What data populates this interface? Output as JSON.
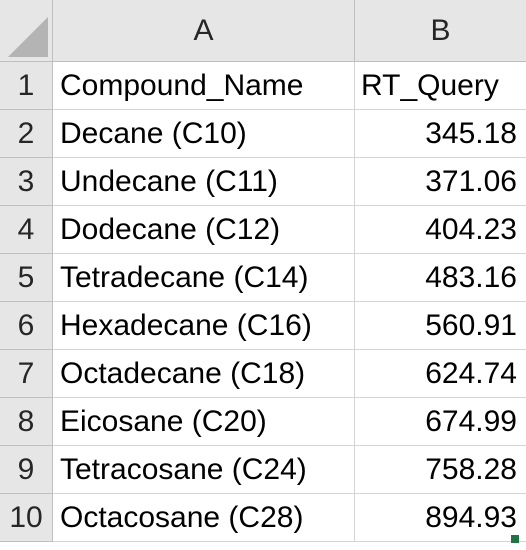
{
  "columns": [
    {
      "letter": "A"
    },
    {
      "letter": "B"
    }
  ],
  "rows": [
    {
      "num": "1",
      "a": "Compound_Name",
      "b": "RT_Query"
    },
    {
      "num": "2",
      "a": "Decane (C10)",
      "b": "345.18"
    },
    {
      "num": "3",
      "a": "Undecane (C11)",
      "b": "371.06"
    },
    {
      "num": "4",
      "a": "Dodecane (C12)",
      "b": "404.23"
    },
    {
      "num": "5",
      "a": "Tetradecane (C14)",
      "b": "483.16"
    },
    {
      "num": "6",
      "a": "Hexadecane (C16)",
      "b": "560.91"
    },
    {
      "num": "7",
      "a": "Octadecane (C18)",
      "b": "624.74"
    },
    {
      "num": "8",
      "a": "Eicosane (C20)",
      "b": "674.99"
    },
    {
      "num": "9",
      "a": "Tetracosane (C24)",
      "b": "758.28"
    },
    {
      "num": "10",
      "a": "Octacosane (C28)",
      "b": "894.93"
    }
  ],
  "colors": {
    "header_bg": "#e6e6e6",
    "gridline": "#d4d4d4",
    "selection_accent": "#217346"
  }
}
